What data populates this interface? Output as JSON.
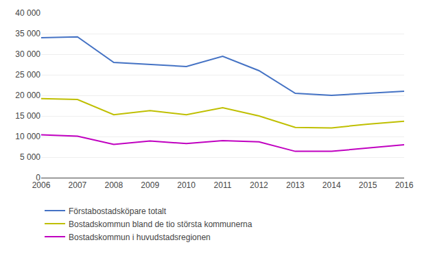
{
  "chart_data": {
    "type": "line",
    "x": [
      2006,
      2007,
      2008,
      2009,
      2010,
      2011,
      2012,
      2013,
      2014,
      2015,
      2016
    ],
    "series": [
      {
        "name": "Förstabostadsköpare totalt",
        "color": "#4472C4",
        "values": [
          34000,
          34200,
          28000,
          27500,
          27000,
          29500,
          26000,
          20500,
          20000,
          20500,
          21000
        ]
      },
      {
        "name": "Bostadskommun bland de tio största kommunerna",
        "color": "#BFBF00",
        "values": [
          19200,
          19000,
          15300,
          16300,
          15300,
          17000,
          15000,
          12200,
          12100,
          13000,
          13700
        ]
      },
      {
        "name": "Bostadskommun i huvudstadsregionen",
        "color": "#C000C0",
        "values": [
          10400,
          10100,
          8100,
          8900,
          8300,
          9000,
          8700,
          6400,
          6400,
          7200,
          8000
        ]
      }
    ],
    "xlim": [
      2006,
      2016
    ],
    "xticks": [
      2006,
      2007,
      2008,
      2009,
      2010,
      2011,
      2012,
      2013,
      2014,
      2015,
      2016
    ],
    "ylim": [
      0,
      40000
    ],
    "yticks": [
      0,
      {
        "value": 5000,
        "label": "5 000"
      },
      {
        "value": 10000,
        "label": "10 000"
      },
      {
        "value": 15000,
        "label": "15 000"
      },
      {
        "value": 20000,
        "label": "20 000"
      },
      {
        "value": 25000,
        "label": "25 000"
      },
      {
        "value": 30000,
        "label": "30 000"
      },
      {
        "value": 35000,
        "label": "35 000"
      },
      {
        "value": 40000,
        "label": "40 000"
      }
    ],
    "grid": true,
    "legend": "bottom"
  }
}
